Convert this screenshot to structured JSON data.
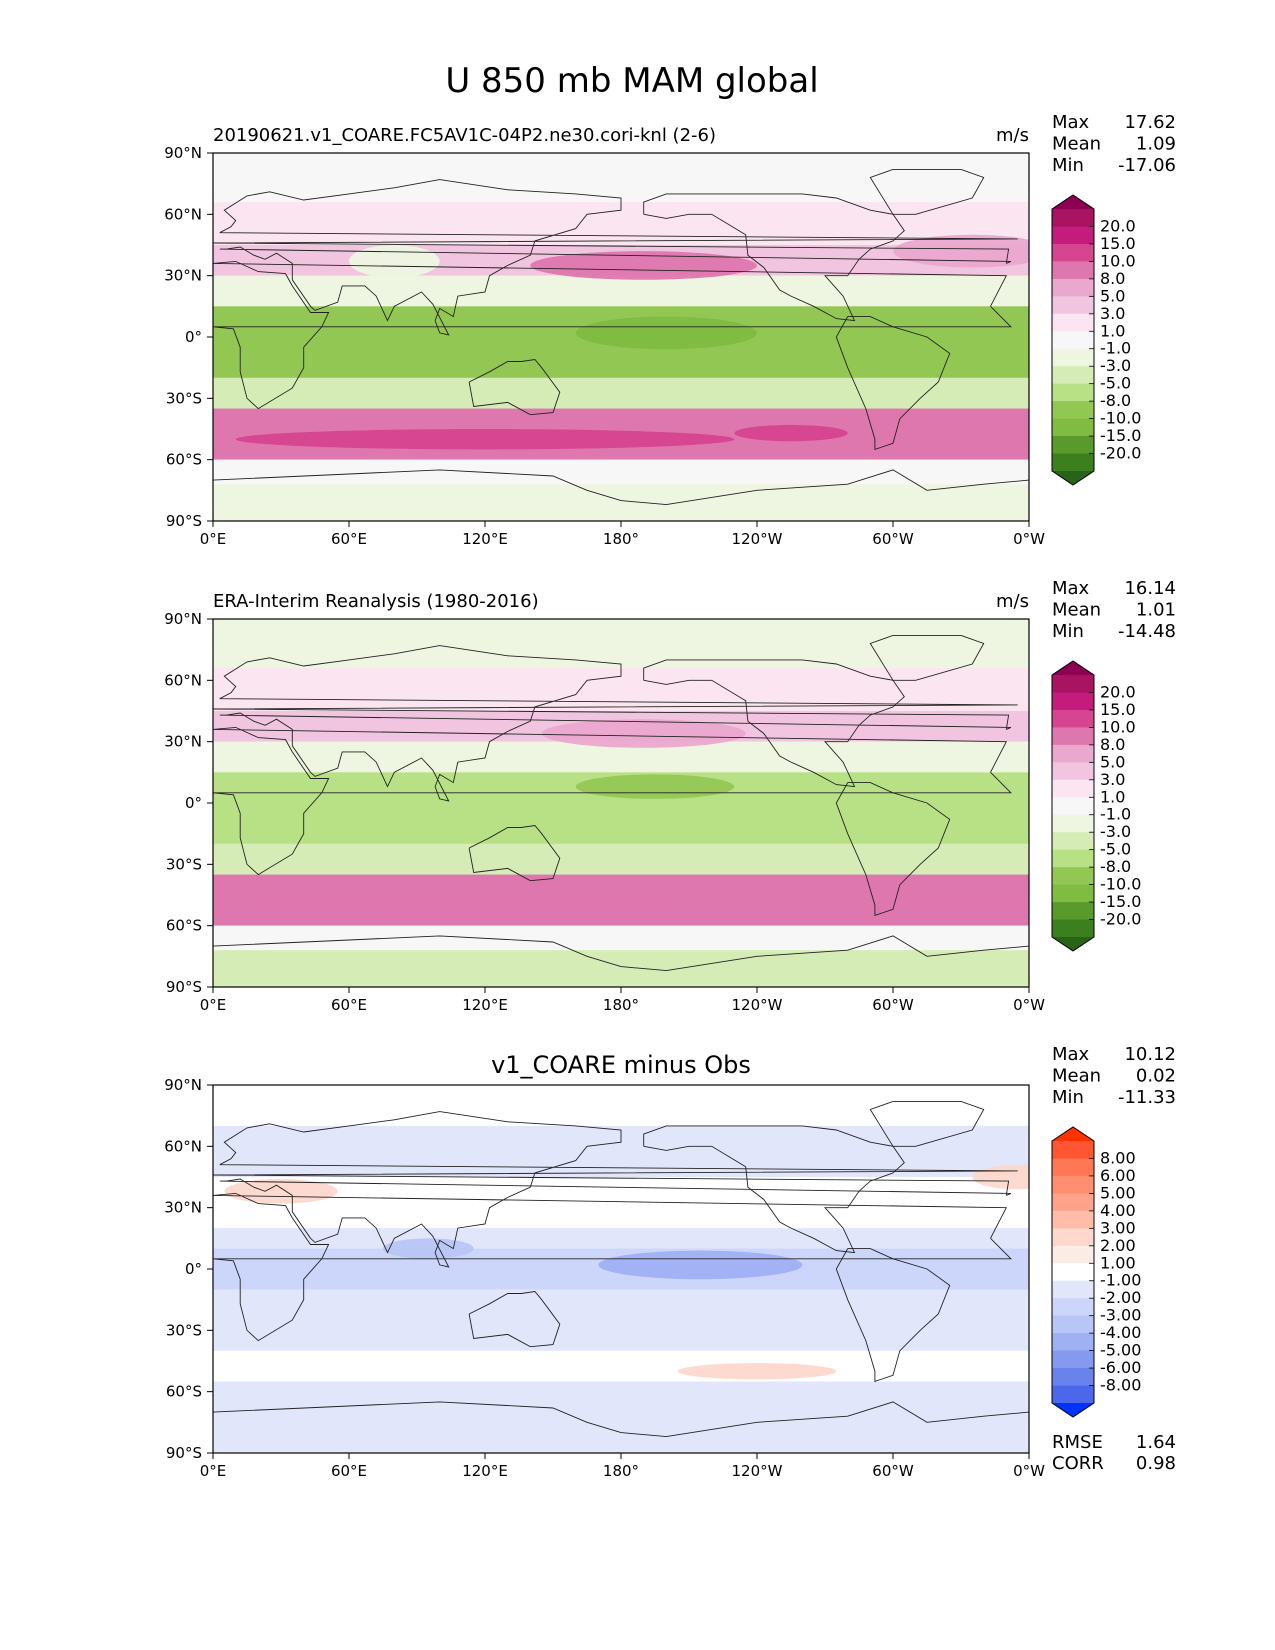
{
  "figure": {
    "title": "U 850 mb MAM global"
  },
  "axes": {
    "x_ticks": [
      "0°E",
      "60°E",
      "120°E",
      "180°",
      "120°W",
      "60°W",
      "0°W"
    ],
    "y_ticks": [
      "90°N",
      "60°N",
      "30°N",
      "0°",
      "30°S",
      "60°S",
      "90°S"
    ]
  },
  "chart_data": [
    {
      "type": "heatmap",
      "title": "20190621.v1_COARE.FC5AV1C-04P2.ne30.cori-knl (2-6)",
      "units": "m/s",
      "xlim": [
        0,
        360
      ],
      "ylim": [
        -90,
        90
      ],
      "stats": {
        "max_label": "Max",
        "max": "17.62",
        "mean_label": "Mean",
        "mean": "1.09",
        "min_label": "Min",
        "min": "-17.06"
      },
      "colorbar": {
        "levels": [
          "20.0",
          "15.0",
          "10.0",
          "8.0",
          "5.0",
          "3.0",
          "1.0",
          "-1.0",
          "-3.0",
          "-5.0",
          "-8.0",
          "-10.0",
          "-15.0",
          "-20.0"
        ],
        "colors": [
          "#8e0152",
          "#a8145f",
          "#c51b7d",
          "#d6458f",
          "#de77ae",
          "#eba8cf",
          "#f1c5e0",
          "#fbe5f0",
          "#f7f7f7",
          "#eef6e1",
          "#d5ecb6",
          "#b8e186",
          "#93c754",
          "#7fbc41",
          "#5a9a2d",
          "#3b7f1f",
          "#276419"
        ]
      },
      "bands": [
        {
          "lat": [
            66,
            90
          ],
          "value": 1.0
        },
        {
          "lat": [
            45,
            66
          ],
          "value": 4.0
        },
        {
          "lat": [
            30,
            45
          ],
          "value": 7.0
        },
        {
          "lat": [
            15,
            30
          ],
          "value": 0.0
        },
        {
          "lat": [
            -20,
            15
          ],
          "value": -6.0
        },
        {
          "lat": [
            -35,
            -20
          ],
          "value": -2.0
        },
        {
          "lat": [
            -60,
            -35
          ],
          "value": 12.0
        },
        {
          "lat": [
            -72,
            -60
          ],
          "value": 2.0
        },
        {
          "lat": [
            -90,
            -72
          ],
          "value": 0.0
        }
      ],
      "features": [
        {
          "lon": 190,
          "lat": 35,
          "rx": 50,
          "ry": 7,
          "value": 12
        },
        {
          "lon": 335,
          "lat": 42,
          "rx": 35,
          "ry": 8,
          "value": 9
        },
        {
          "lon": 200,
          "lat": 2,
          "rx": 40,
          "ry": 8,
          "value": -10
        },
        {
          "lon": 120,
          "lat": -50,
          "rx": 110,
          "ry": 5,
          "value": 16
        },
        {
          "lon": 255,
          "lat": -47,
          "rx": 25,
          "ry": 4,
          "value": 16
        },
        {
          "lon": 80,
          "lat": 37,
          "rx": 20,
          "ry": 8,
          "value": 0
        }
      ]
    },
    {
      "type": "heatmap",
      "title": "ERA-Interim Reanalysis (1980-2016)",
      "units": "m/s",
      "xlim": [
        0,
        360
      ],
      "ylim": [
        -90,
        90
      ],
      "stats": {
        "max_label": "Max",
        "max": "16.14",
        "mean_label": "Mean",
        "mean": "1.01",
        "min_label": "Min",
        "min": "-14.48"
      },
      "colorbar": {
        "levels": [
          "20.0",
          "15.0",
          "10.0",
          "8.0",
          "5.0",
          "3.0",
          "1.0",
          "-1.0",
          "-3.0",
          "-5.0",
          "-8.0",
          "-10.0",
          "-15.0",
          "-20.0"
        ],
        "colors": [
          "#8e0152",
          "#a8145f",
          "#c51b7d",
          "#d6458f",
          "#de77ae",
          "#eba8cf",
          "#f1c5e0",
          "#fbe5f0",
          "#f7f7f7",
          "#eef6e1",
          "#d5ecb6",
          "#b8e186",
          "#93c754",
          "#7fbc41",
          "#5a9a2d",
          "#3b7f1f",
          "#276419"
        ]
      },
      "bands": [
        {
          "lat": [
            66,
            90
          ],
          "value": 0.0
        },
        {
          "lat": [
            45,
            66
          ],
          "value": 3.5
        },
        {
          "lat": [
            30,
            45
          ],
          "value": 5.0
        },
        {
          "lat": [
            15,
            30
          ],
          "value": 0.0
        },
        {
          "lat": [
            -20,
            15
          ],
          "value": -4.0
        },
        {
          "lat": [
            -35,
            -20
          ],
          "value": -2.0
        },
        {
          "lat": [
            -60,
            -35
          ],
          "value": 11.0
        },
        {
          "lat": [
            -72,
            -60
          ],
          "value": 2.0
        },
        {
          "lat": [
            -90,
            -72
          ],
          "value": -2.0
        }
      ],
      "features": [
        {
          "lon": 190,
          "lat": 34,
          "rx": 45,
          "ry": 7,
          "value": 9
        },
        {
          "lon": 195,
          "lat": 8,
          "rx": 35,
          "ry": 6,
          "value": -8
        },
        {
          "lon": 110,
          "lat": -50,
          "rx": 100,
          "ry": 5,
          "value": 14
        },
        {
          "lon": 335,
          "lat": -47,
          "rx": 30,
          "ry": 5,
          "value": 12
        }
      ]
    },
    {
      "type": "heatmap",
      "title": "v1_COARE minus Obs",
      "units": "m/s",
      "xlim": [
        0,
        360
      ],
      "ylim": [
        -90,
        90
      ],
      "stats": {
        "max_label": "Max",
        "max": "10.12",
        "mean_label": "Mean",
        "mean": "0.02",
        "min_label": "Min",
        "min": "-11.33",
        "rmse_label": "RMSE",
        "rmse": "1.64",
        "corr_label": "CORR",
        "corr": "0.98"
      },
      "colorbar": {
        "levels": [
          "8.00",
          "6.00",
          "5.00",
          "4.00",
          "3.00",
          "2.00",
          "1.00",
          "-1.00",
          "-2.00",
          "-3.00",
          "-4.00",
          "-5.00",
          "-6.00",
          "-8.00"
        ],
        "colors": [
          "#ff3300",
          "#ff5533",
          "#ff7755",
          "#ff8f70",
          "#ffa38a",
          "#ffbca8",
          "#fdd8cc",
          "#fbece6",
          "#ffffff",
          "#e1e6fb",
          "#ccd6fa",
          "#b8c5f6",
          "#9fb0f3",
          "#8599ef",
          "#6a82ec",
          "#4c68ea",
          "#0033ff"
        ]
      },
      "bands": [
        {
          "lat": [
            70,
            90
          ],
          "value": 1.5
        },
        {
          "lat": [
            20,
            45
          ],
          "value": 1.5
        },
        {
          "lat": [
            -10,
            10
          ],
          "value": -1.5
        },
        {
          "lat": [
            -55,
            -40
          ],
          "value": 1.5
        }
      ],
      "features": [
        {
          "lon": 215,
          "lat": 2,
          "rx": 45,
          "ry": 7,
          "value": -4
        },
        {
          "lon": 95,
          "lat": 10,
          "rx": 20,
          "ry": 5,
          "value": -2.5
        },
        {
          "lon": 240,
          "lat": -50,
          "rx": 35,
          "ry": 4,
          "value": 3.5
        },
        {
          "lon": 30,
          "lat": 38,
          "rx": 25,
          "ry": 6,
          "value": 3
        },
        {
          "lon": 355,
          "lat": 45,
          "rx": 20,
          "ry": 6,
          "value": 3
        }
      ]
    }
  ]
}
